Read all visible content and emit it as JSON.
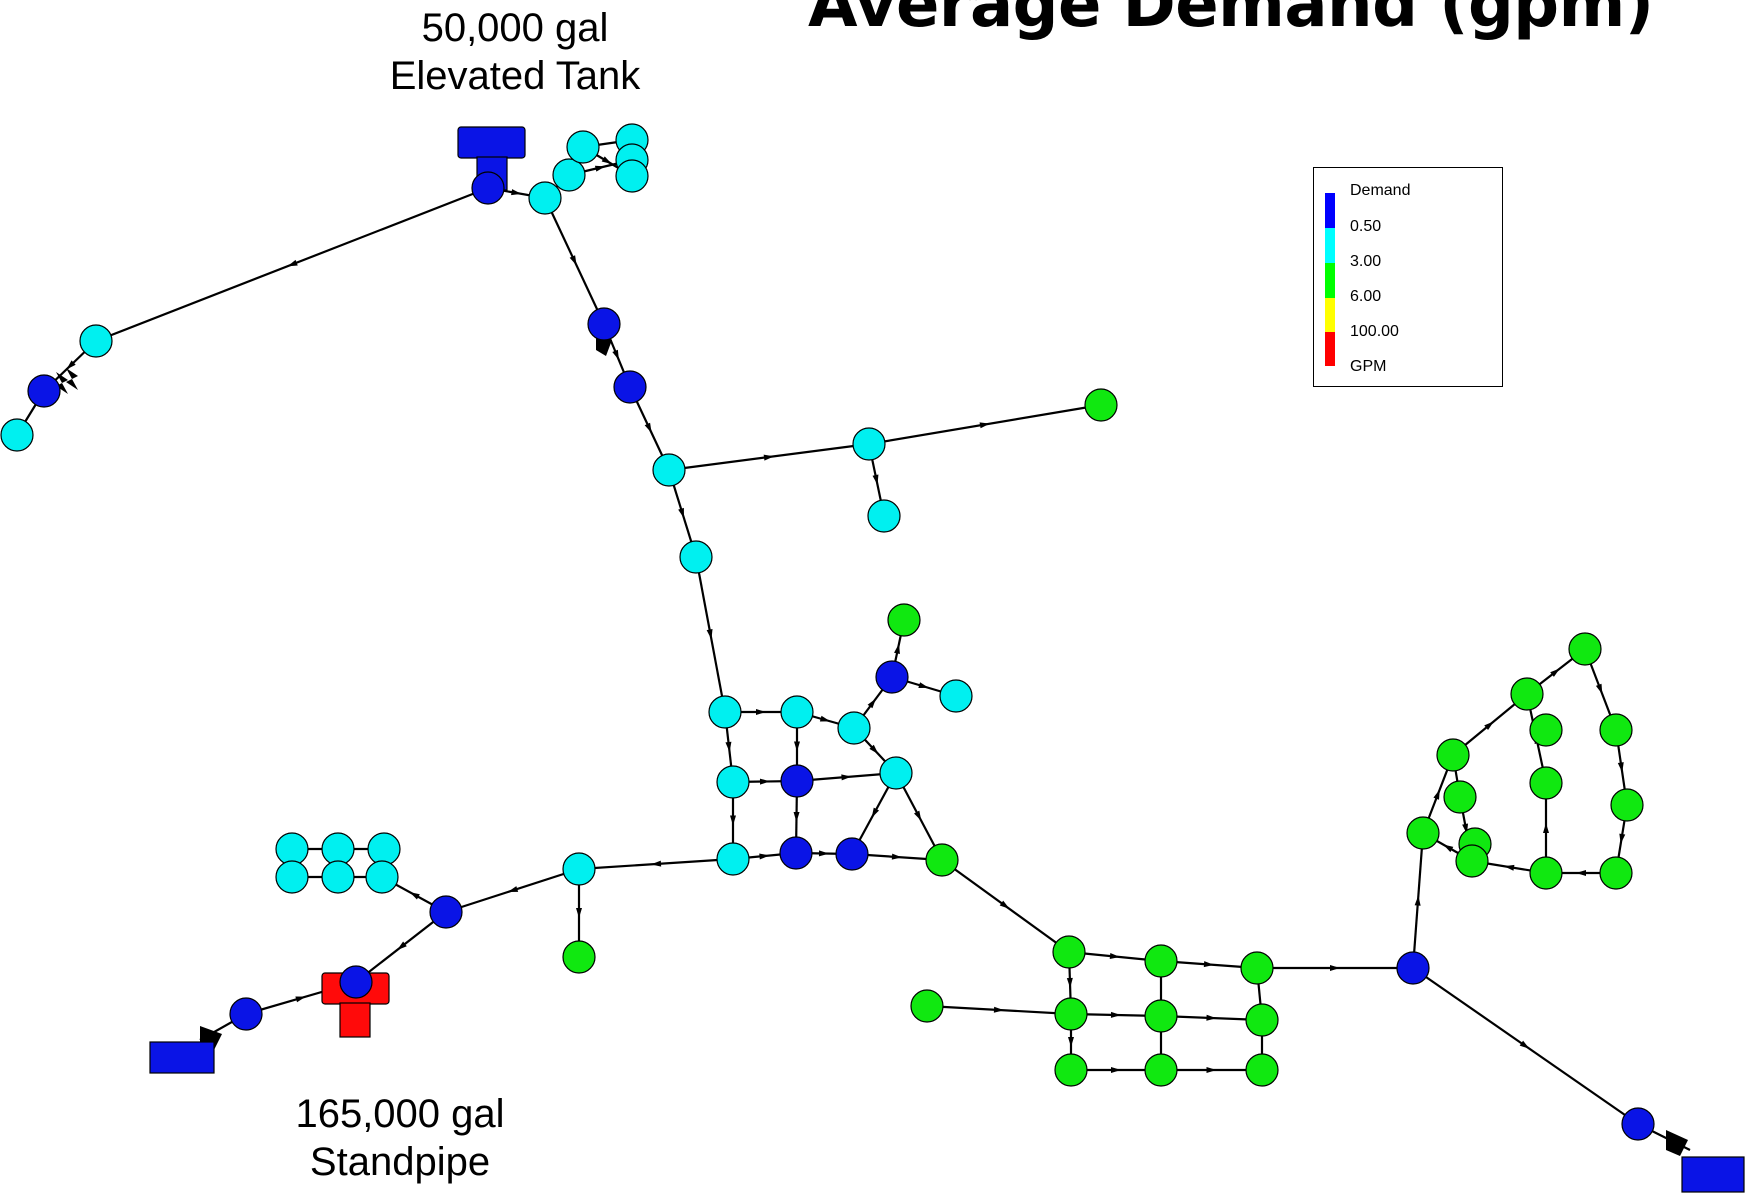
{
  "title": "Average Demand (gpm)",
  "annotations": {
    "elevated_tank": {
      "line1": "50,000 gal",
      "line2": "Elevated Tank"
    },
    "standpipe": {
      "line1": "165,000 gal",
      "line2": "Standpipe"
    }
  },
  "legend": {
    "heading": "Demand",
    "breaks": [
      "0.50",
      "3.00",
      "6.00",
      "100.00"
    ],
    "units": "GPM",
    "colors": [
      "#0000ff",
      "#00ffff",
      "#00ff00",
      "#ffff00",
      "#ff0000"
    ]
  },
  "colors": {
    "blue": "#0a14e6",
    "cyan": "#00f0f0",
    "green": "#10e810",
    "red": "#ff0a0a",
    "pipe": "#000000"
  }
}
